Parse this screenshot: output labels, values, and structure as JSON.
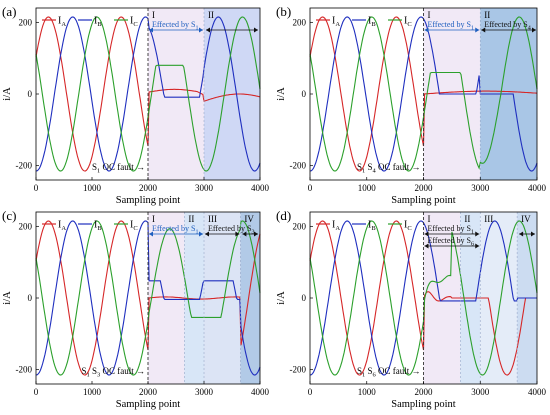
{
  "chart_data": [
    {
      "type": "line",
      "panel_label": "(a)",
      "xlabel": "Sampling point",
      "ylabel": "i/A",
      "xlim": [
        0,
        4000
      ],
      "ylim": [
        -240,
        240
      ],
      "xticks": [
        "0",
        "1000",
        "2000",
        "3000",
        "4000"
      ],
      "yticks": [
        "-200",
        "0",
        "200"
      ],
      "legend": [
        "I_A",
        "I_B",
        "I_C"
      ],
      "series_colors": {
        "I_A": "#d62728",
        "I_B": "#1f2fbf",
        "I_C": "#2ca02c"
      },
      "amplitude": 215,
      "fault": {
        "x": 2000,
        "label_main": "S",
        "label_sub": "1",
        "label_tail": " OC fault →"
      },
      "regions": [
        {
          "name": "I",
          "x0": 2000,
          "x1": 3000,
          "color": "#f1e9f6"
        },
        {
          "name": "II",
          "x0": 3000,
          "x1": 4000,
          "color": "#cfd8f5"
        }
      ],
      "effects": [
        {
          "text": "Effected by S",
          "sub": "1",
          "x0": 2000,
          "x1": 3000,
          "style": "blue"
        }
      ],
      "region_arrows": [
        {
          "x0": 3000,
          "x1": 4000
        }
      ]
    },
    {
      "type": "line",
      "panel_label": "(b)",
      "xlabel": "Sampling point",
      "ylabel": "i/A",
      "xlim": [
        0,
        4000
      ],
      "ylim": [
        -240,
        240
      ],
      "xticks": [
        "0",
        "1000",
        "2000",
        "3000",
        "4000"
      ],
      "yticks": [
        "-200",
        "0",
        "200"
      ],
      "legend": [
        "I_A",
        "I_B",
        "I_C"
      ],
      "series_colors": {
        "I_A": "#d62728",
        "I_B": "#1f2fbf",
        "I_C": "#2ca02c"
      },
      "amplitude": 215,
      "fault": {
        "x": 2000,
        "label_main": "S",
        "label_sub": "1",
        "label_mid": " S",
        "label_sub2": "4",
        "label_tail": " OC fault →"
      },
      "regions": [
        {
          "name": "I",
          "x0": 2000,
          "x1": 3000,
          "color": "#f1e9f6"
        },
        {
          "name": "II",
          "x0": 3000,
          "x1": 4000,
          "color": "#a9c6e6"
        }
      ],
      "effects": [
        {
          "text": "Effected by S",
          "sub": "1",
          "x0": 2000,
          "x1": 3000,
          "style": "blue"
        },
        {
          "text": "Effected by S",
          "sub": "4",
          "x0": 3000,
          "x1": 4000,
          "style": "black"
        }
      ]
    },
    {
      "type": "line",
      "panel_label": "(c)",
      "xlabel": "Sampling point",
      "ylabel": "i/A",
      "xlim": [
        0,
        4000
      ],
      "ylim": [
        -240,
        240
      ],
      "xticks": [
        "0",
        "1000",
        "2000",
        "3000",
        "4000"
      ],
      "yticks": [
        "-200",
        "0",
        "200"
      ],
      "legend": [
        "I_A",
        "I_B",
        "I_C"
      ],
      "series_colors": {
        "I_A": "#d62728",
        "I_B": "#1f2fbf",
        "I_C": "#2ca02c"
      },
      "amplitude": 215,
      "fault": {
        "x": 2000,
        "label_main": "S",
        "label_sub": "1",
        "label_mid": " S",
        "label_sub2": "3",
        "label_tail": " OC fault →"
      },
      "regions": [
        {
          "name": "I",
          "x0": 2000,
          "x1": 2650,
          "color": "#f1e9f6"
        },
        {
          "name": "II",
          "x0": 2650,
          "x1": 3000,
          "color": "#d8e6f7"
        },
        {
          "name": "III",
          "x0": 3000,
          "x1": 3650,
          "color": "#dce4f5"
        },
        {
          "name": "IV",
          "x0": 3650,
          "x1": 4000,
          "color": "#b2cae7"
        }
      ],
      "effects": [
        {
          "text": "Effected by S",
          "sub": "1",
          "x0": 2000,
          "x1": 3000,
          "style": "blue"
        },
        {
          "text": "Effected by S",
          "sub": "3",
          "x0": 3000,
          "x1": 3650,
          "style": "black"
        }
      ],
      "region_arrows": [
        {
          "x0": 3650,
          "x1": 4000
        }
      ]
    },
    {
      "type": "line",
      "panel_label": "(d)",
      "xlabel": "Sampling point",
      "ylabel": "i/A",
      "xlim": [
        0,
        4000
      ],
      "ylim": [
        -240,
        240
      ],
      "xticks": [
        "0",
        "1000",
        "2000",
        "3000",
        "4000"
      ],
      "yticks": [
        "-200",
        "0",
        "200"
      ],
      "legend": [
        "I_A",
        "I_B",
        "I_C"
      ],
      "series_colors": {
        "I_A": "#d62728",
        "I_B": "#1f2fbf",
        "I_C": "#2ca02c"
      },
      "amplitude": 215,
      "fault": {
        "x": 2000,
        "label_main": "S",
        "label_sub": "1",
        "label_mid": " S",
        "label_sub2": "6",
        "label_tail": " OC fault →"
      },
      "regions": [
        {
          "name": "I",
          "x0": 2000,
          "x1": 2650,
          "color": "#f1e9f6"
        },
        {
          "name": "II",
          "x0": 2650,
          "x1": 3000,
          "color": "#d8e6f7"
        },
        {
          "name": "III",
          "x0": 3000,
          "x1": 3650,
          "color": "#e4ecf8"
        },
        {
          "name": "IV",
          "x0": 3650,
          "x1": 4000,
          "color": "#ccdcf1"
        }
      ],
      "effects": [
        {
          "text": "Effected by S",
          "sub": "1",
          "x0": 2000,
          "x1": 3000,
          "style": "black"
        },
        {
          "text": "Effected by S",
          "sub": "6",
          "x0": 2000,
          "x1": 3000,
          "style": "black",
          "row": 2
        }
      ],
      "region_arrows": [
        {
          "x0": 3650,
          "x1": 4000
        }
      ]
    }
  ]
}
